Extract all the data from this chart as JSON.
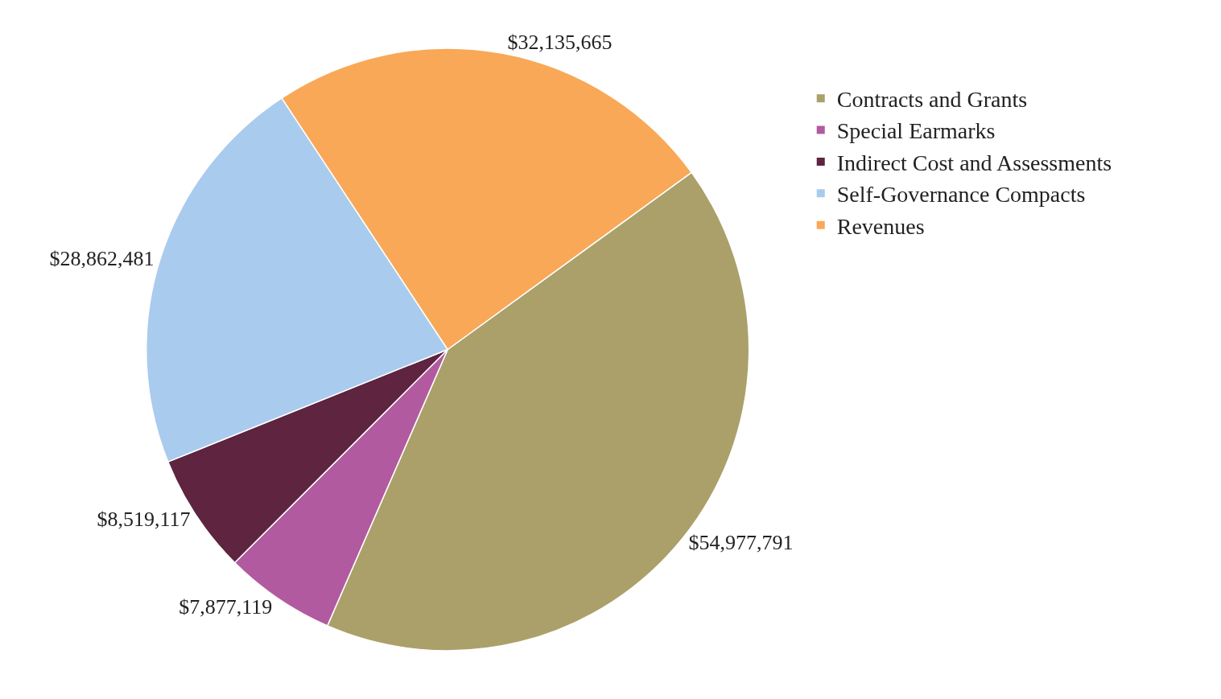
{
  "chart_data": {
    "type": "pie",
    "categories": [
      "Contracts and Grants",
      "Special Earmarks",
      "Indirect Cost and Assessments",
      "Self-Governance Compacts",
      "Revenues"
    ],
    "values": [
      54977791,
      7877119,
      8519117,
      28862481,
      32135665
    ],
    "value_labels": [
      "$54,977,791",
      "$7,877,119",
      "$8,519,117",
      "$28,862,481",
      "$32,135,665"
    ],
    "colors": [
      "#aba06a",
      "#b25a9f",
      "#5e2440",
      "#a9cbee",
      "#f9a857"
    ],
    "legend": "right"
  }
}
